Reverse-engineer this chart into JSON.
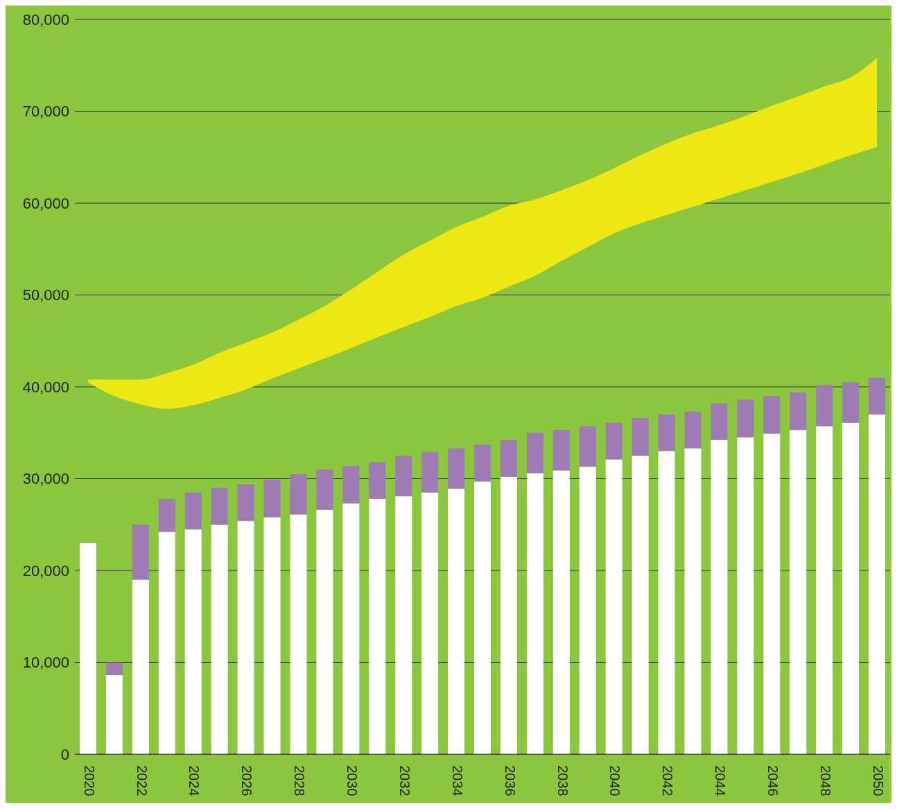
{
  "chart_data": {
    "type": "bar",
    "stacked": true,
    "grid": "y",
    "categories": [
      "2020",
      null,
      "2022",
      null,
      "2024",
      null,
      "2026",
      null,
      "2028",
      null,
      "2030",
      null,
      "2032",
      null,
      "2034",
      null,
      "2036",
      null,
      "2038",
      null,
      "2040",
      null,
      "2042",
      null,
      "2044",
      null,
      "2046",
      null,
      "2048",
      null,
      "2050"
    ],
    "ylim": [
      0,
      80000
    ],
    "yticks": [
      {
        "value": 0,
        "label": "0"
      },
      {
        "value": 10000,
        "label": "10,000"
      },
      {
        "value": 20000,
        "label": "20,000"
      },
      {
        "value": 30000,
        "label": "30,000"
      },
      {
        "value": 40000,
        "label": "40,000"
      },
      {
        "value": 50000,
        "label": "50,000"
      },
      {
        "value": 60000,
        "label": "60,000"
      },
      {
        "value": 70000,
        "label": "70,000"
      },
      {
        "value": 80000,
        "label": "80,000"
      }
    ],
    "series": [
      {
        "color": "#ffffff",
        "values": [
          23000,
          8600,
          19000,
          24200,
          24500,
          25000,
          25400,
          25800,
          26100,
          26600,
          27300,
          27800,
          28100,
          28500,
          28900,
          29700,
          30200,
          30600,
          30900,
          31300,
          32100,
          32500,
          33000,
          33300,
          34200,
          34500,
          34900,
          35300,
          35700,
          36100,
          37000
        ]
      },
      {
        "color": "#9e7bb5",
        "values": [
          null,
          1400,
          6000,
          3600,
          4000,
          4000,
          4000,
          4100,
          4400,
          4400,
          4100,
          4000,
          4400,
          4400,
          4400,
          4000,
          4000,
          4400,
          4400,
          4400,
          4000,
          4100,
          4000,
          4000,
          4000,
          4100,
          4100,
          4100,
          4500,
          4400,
          4000
        ]
      },
      {
        "type": "area",
        "color": "#ede813",
        "values": [
          null,
          null,
          null,
          null,
          null,
          null,
          null,
          null,
          null,
          null,
          null,
          null,
          null,
          null,
          null,
          null,
          null,
          null,
          null,
          null,
          null,
          null,
          null,
          null,
          null,
          null,
          null,
          null,
          null,
          null,
          null
        ],
        "lower": [
          40500,
          39000,
          38100,
          37600,
          38000,
          38800,
          39700,
          40900,
          42000,
          43100,
          44200,
          45400,
          46500,
          47600,
          48800,
          49700,
          50900,
          52100,
          53700,
          55200,
          56700,
          57800,
          58700,
          59600,
          60500,
          61400,
          62300,
          63200,
          64200,
          65200,
          66100
        ],
        "upper": [
          40800,
          40800,
          40800,
          41500,
          42400,
          43700,
          44800,
          45900,
          47300,
          48800,
          50600,
          52500,
          54400,
          55900,
          57400,
          58500,
          59700,
          60400,
          61400,
          62500,
          63800,
          65200,
          66500,
          67600,
          68500,
          69500,
          70600,
          71600,
          72700,
          73700,
          75800
        ]
      }
    ]
  }
}
